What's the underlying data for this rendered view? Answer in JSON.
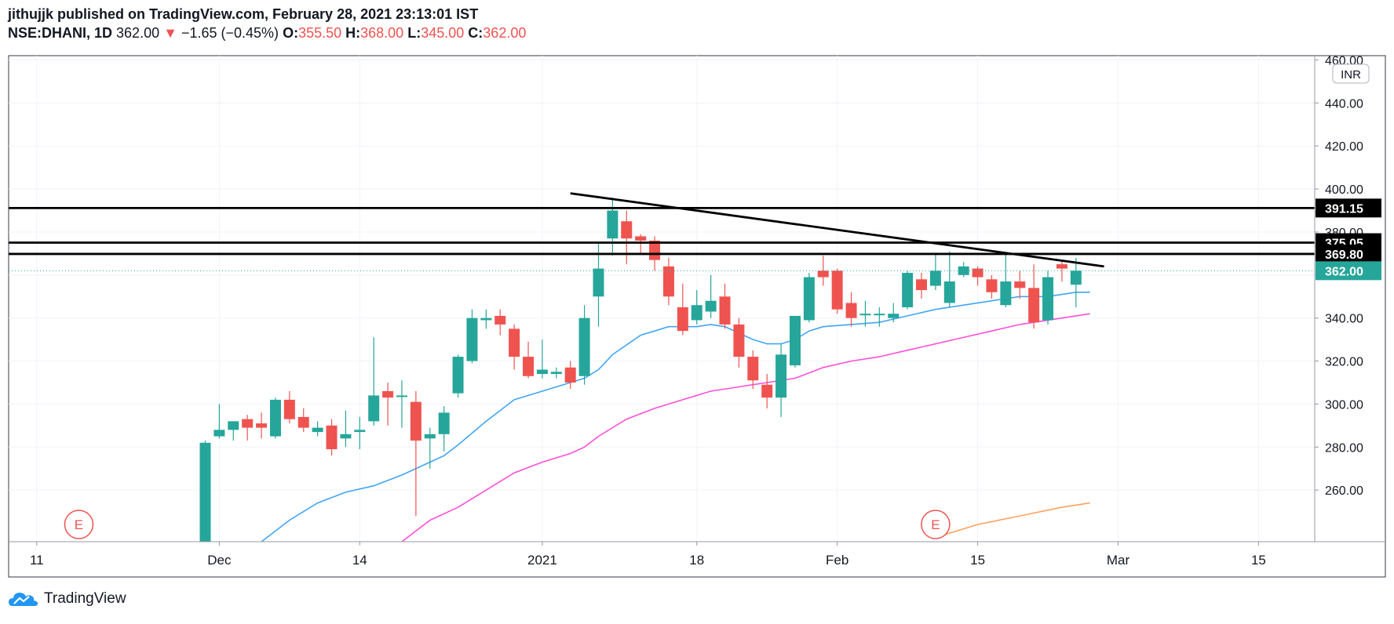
{
  "header": {
    "publisher_line": "jithujjk published on TradingView.com, February 28, 2021 23:13:01 IST",
    "symbol": "NSE:DHANI, 1D",
    "last": "362.00",
    "change_arrow": "▼",
    "change": "−1.65 (−0.45%)",
    "o_label": "O:",
    "o_value": "355.50",
    "h_label": "H:",
    "h_value": "368.00",
    "l_label": "L:",
    "l_value": "345.00",
    "c_label": "C:",
    "c_value": "362.00"
  },
  "currency_badge": "INR",
  "footer": {
    "brand": "TradingView"
  },
  "earnings_markers": [
    {
      "label": "E",
      "x_index": -9
    },
    {
      "label": "E",
      "x_index": 52
    }
  ],
  "colors": {
    "up": "#26a69a",
    "down": "#ef5350",
    "ma_fast": "#42a5f5",
    "ma_slow": "#ff4fd8",
    "ma_orange": "#ffa15c",
    "level_line": "#000000",
    "last_price_badge": "#26a69a"
  },
  "chart_data": {
    "type": "candlestick",
    "symbol": "NSE:DHANI",
    "interval": "1D",
    "ylim": [
      236,
      462
    ],
    "y_ticks": [
      260,
      280,
      300,
      320,
      340,
      360,
      380,
      400,
      420,
      440,
      460
    ],
    "y_tick_labels": [
      "260.00",
      "280.00",
      "300.00",
      "320.00",
      "340.00",
      "360.00",
      "380.00",
      "400.00",
      "420.00",
      "440.00",
      "460.00"
    ],
    "x_ticks": [
      {
        "label": "11",
        "i": -12
      },
      {
        "label": "Dec",
        "i": 1
      },
      {
        "label": "14",
        "i": 11
      },
      {
        "label": "2021",
        "i": 24
      },
      {
        "label": "18",
        "i": 35
      },
      {
        "label": "Feb",
        "i": 45
      },
      {
        "label": "15",
        "i": 55
      },
      {
        "label": "Mar",
        "i": 65
      },
      {
        "label": "15",
        "i": 75
      }
    ],
    "x_range": [
      -14,
      79
    ],
    "candles": [
      {
        "o": 235,
        "h": 283,
        "l": 230,
        "c": 282
      },
      {
        "o": 285,
        "h": 300,
        "l": 284,
        "c": 288
      },
      {
        "o": 288,
        "h": 292,
        "l": 283,
        "c": 292
      },
      {
        "o": 293,
        "h": 295,
        "l": 283,
        "c": 289
      },
      {
        "o": 291,
        "h": 296,
        "l": 284,
        "c": 289
      },
      {
        "o": 285,
        "h": 303,
        "l": 284,
        "c": 302
      },
      {
        "o": 302,
        "h": 306,
        "l": 291,
        "c": 293
      },
      {
        "o": 294,
        "h": 298,
        "l": 287,
        "c": 289
      },
      {
        "o": 287,
        "h": 292,
        "l": 285,
        "c": 289
      },
      {
        "o": 290,
        "h": 293,
        "l": 276,
        "c": 279
      },
      {
        "o": 284,
        "h": 297,
        "l": 280,
        "c": 286
      },
      {
        "o": 287,
        "h": 294,
        "l": 279,
        "c": 288
      },
      {
        "o": 292,
        "h": 331,
        "l": 290,
        "c": 304
      },
      {
        "o": 306,
        "h": 310,
        "l": 290,
        "c": 303
      },
      {
        "o": 304,
        "h": 311,
        "l": 289,
        "c": 304
      },
      {
        "o": 301,
        "h": 306,
        "l": 248,
        "c": 283
      },
      {
        "o": 284,
        "h": 289,
        "l": 270,
        "c": 286
      },
      {
        "o": 286,
        "h": 299,
        "l": 278,
        "c": 296
      },
      {
        "o": 305,
        "h": 323,
        "l": 303,
        "c": 322
      },
      {
        "o": 320,
        "h": 344,
        "l": 319,
        "c": 340
      },
      {
        "o": 339,
        "h": 344,
        "l": 335,
        "c": 340
      },
      {
        "o": 341,
        "h": 344,
        "l": 332,
        "c": 337
      },
      {
        "o": 335,
        "h": 337,
        "l": 316,
        "c": 322
      },
      {
        "o": 322,
        "h": 329,
        "l": 312,
        "c": 313
      },
      {
        "o": 314,
        "h": 330,
        "l": 312,
        "c": 316
      },
      {
        "o": 314,
        "h": 317,
        "l": 312,
        "c": 315
      },
      {
        "o": 317,
        "h": 320,
        "l": 307,
        "c": 310
      },
      {
        "o": 313,
        "h": 346,
        "l": 309,
        "c": 340
      },
      {
        "o": 350,
        "h": 375,
        "l": 336,
        "c": 363
      },
      {
        "o": 377,
        "h": 396,
        "l": 369,
        "c": 390
      },
      {
        "o": 385,
        "h": 390,
        "l": 365,
        "c": 377
      },
      {
        "o": 378,
        "h": 379,
        "l": 370,
        "c": 376
      },
      {
        "o": 376,
        "h": 378,
        "l": 362,
        "c": 367
      },
      {
        "o": 364,
        "h": 368,
        "l": 346,
        "c": 350
      },
      {
        "o": 345,
        "h": 356,
        "l": 332,
        "c": 334
      },
      {
        "o": 339,
        "h": 353,
        "l": 337,
        "c": 346
      },
      {
        "o": 343,
        "h": 360,
        "l": 340,
        "c": 348
      },
      {
        "o": 350,
        "h": 356,
        "l": 335,
        "c": 337
      },
      {
        "o": 337,
        "h": 340,
        "l": 317,
        "c": 322
      },
      {
        "o": 322,
        "h": 325,
        "l": 307,
        "c": 311
      },
      {
        "o": 309,
        "h": 314,
        "l": 298,
        "c": 303
      },
      {
        "o": 303,
        "h": 328,
        "l": 294,
        "c": 323
      },
      {
        "o": 318,
        "h": 341,
        "l": 317,
        "c": 341
      },
      {
        "o": 339,
        "h": 361,
        "l": 338,
        "c": 359
      },
      {
        "o": 362,
        "h": 369,
        "l": 355,
        "c": 359
      },
      {
        "o": 362,
        "h": 363,
        "l": 342,
        "c": 344
      },
      {
        "o": 347,
        "h": 352,
        "l": 336,
        "c": 340
      },
      {
        "o": 342,
        "h": 348,
        "l": 336,
        "c": 342
      },
      {
        "o": 342,
        "h": 345,
        "l": 336,
        "c": 342
      },
      {
        "o": 340,
        "h": 347,
        "l": 338,
        "c": 342
      },
      {
        "o": 345,
        "h": 362,
        "l": 344,
        "c": 361
      },
      {
        "o": 358,
        "h": 361,
        "l": 349,
        "c": 353
      },
      {
        "o": 355,
        "h": 370,
        "l": 353,
        "c": 362
      },
      {
        "o": 347,
        "h": 371,
        "l": 345,
        "c": 357
      },
      {
        "o": 360,
        "h": 366,
        "l": 359,
        "c": 364
      },
      {
        "o": 363,
        "h": 364,
        "l": 355,
        "c": 359
      },
      {
        "o": 358,
        "h": 360,
        "l": 349,
        "c": 352
      },
      {
        "o": 346,
        "h": 370,
        "l": 345,
        "c": 357
      },
      {
        "o": 357,
        "h": 362,
        "l": 349,
        "c": 354
      },
      {
        "o": 354,
        "h": 365,
        "l": 335,
        "c": 338
      },
      {
        "o": 339,
        "h": 362,
        "l": 337,
        "c": 359
      },
      {
        "o": 365,
        "h": 367,
        "l": 357,
        "c": 363
      },
      {
        "o": 355.5,
        "h": 368,
        "l": 345,
        "c": 362
      }
    ],
    "ma_fast": {
      "color": "#42a5f5",
      "points": [
        [
          4,
          236
        ],
        [
          6,
          246
        ],
        [
          8,
          254
        ],
        [
          10,
          259
        ],
        [
          12,
          262
        ],
        [
          14,
          267
        ],
        [
          16,
          273
        ],
        [
          17,
          276
        ],
        [
          18,
          281
        ],
        [
          20,
          292
        ],
        [
          22,
          302
        ],
        [
          24,
          306
        ],
        [
          26,
          310
        ],
        [
          27,
          312
        ],
        [
          28,
          316
        ],
        [
          29,
          323
        ],
        [
          31,
          332
        ],
        [
          32,
          334
        ],
        [
          33,
          336
        ],
        [
          34,
          336
        ],
        [
          35,
          336
        ],
        [
          36,
          337
        ],
        [
          37,
          336
        ],
        [
          38,
          333
        ],
        [
          39,
          330
        ],
        [
          40,
          328
        ],
        [
          41,
          328
        ],
        [
          42,
          330
        ],
        [
          43,
          334
        ],
        [
          44,
          336
        ],
        [
          46,
          337
        ],
        [
          48,
          338
        ],
        [
          50,
          341
        ],
        [
          52,
          344
        ],
        [
          54,
          346
        ],
        [
          56,
          348
        ],
        [
          58,
          350
        ],
        [
          60,
          350
        ],
        [
          62,
          352
        ],
        [
          63,
          352
        ]
      ]
    },
    "ma_slow": {
      "color": "#ff4fd8",
      "points": [
        [
          14,
          236
        ],
        [
          16,
          246
        ],
        [
          18,
          252
        ],
        [
          20,
          260
        ],
        [
          22,
          268
        ],
        [
          24,
          273
        ],
        [
          26,
          277
        ],
        [
          27,
          280
        ],
        [
          28,
          285
        ],
        [
          30,
          293
        ],
        [
          32,
          298
        ],
        [
          34,
          302
        ],
        [
          36,
          306
        ],
        [
          38,
          308
        ],
        [
          39,
          309
        ],
        [
          40,
          310
        ],
        [
          41,
          311
        ],
        [
          42,
          312
        ],
        [
          44,
          317
        ],
        [
          46,
          320
        ],
        [
          48,
          322
        ],
        [
          50,
          325
        ],
        [
          52,
          328
        ],
        [
          54,
          331
        ],
        [
          56,
          334
        ],
        [
          58,
          337
        ],
        [
          60,
          339
        ],
        [
          62,
          341
        ],
        [
          63,
          342
        ]
      ]
    },
    "ma_orange": {
      "color": "#ffa15c",
      "points": [
        [
          52,
          238
        ],
        [
          55,
          244
        ],
        [
          58,
          248
        ],
        [
          61,
          252
        ],
        [
          63,
          254
        ]
      ]
    },
    "trendline": {
      "start": [
        26,
        398
      ],
      "end": [
        64,
        364
      ]
    },
    "horizontal_levels": [
      391.15,
      375.05,
      369.8
    ],
    "last_price": 362.0,
    "price_labels": [
      "391.15",
      "375.05",
      "369.80",
      "362.00"
    ]
  }
}
